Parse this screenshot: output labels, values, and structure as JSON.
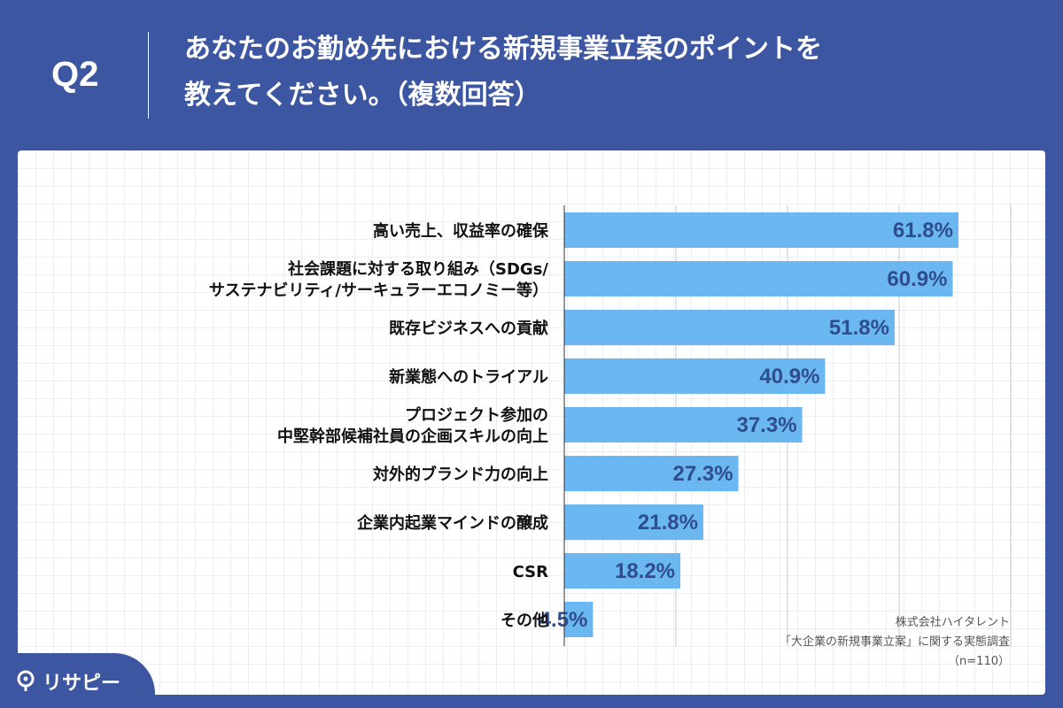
{
  "header": {
    "question_label": "Q2",
    "title_line1": "あなたのお勤め先における新規事業立案のポイントを",
    "title_line2": "教えてください。（複数回答）"
  },
  "source": {
    "line1": "株式会社ハイタレント",
    "line2": "「大企業の新規事業立案」に関する実態調査",
    "line3": "（n=110）"
  },
  "logo": {
    "text": "リサピー",
    "icon": "magnifier-pin-icon"
  },
  "colors": {
    "background": "#3d56a2",
    "bar": "#6ab7f2",
    "value_text": "#2f4d8c",
    "grid": "#c9cbd0"
  },
  "chart_data": {
    "type": "bar",
    "orientation": "horizontal",
    "categories": [
      [
        "高い売上、収益率の確保"
      ],
      [
        "社会課題に対する取り組み（SDGs/",
        "サステナビリティ/サーキュラーエコノミー等）"
      ],
      [
        "既存ビジネスへの貢献"
      ],
      [
        "新業態へのトライアル"
      ],
      [
        "プロジェクト参加の",
        "中堅幹部候補社員の企画スキルの向上"
      ],
      [
        "対外的ブランド力の向上"
      ],
      [
        "企業内起業マインドの醸成"
      ],
      [
        "CSR"
      ],
      [
        "その他"
      ]
    ],
    "values": [
      61.8,
      60.9,
      51.8,
      40.9,
      37.3,
      27.3,
      21.8,
      18.2,
      4.5
    ],
    "value_labels": [
      "61.8%",
      "60.9%",
      "51.8%",
      "40.9%",
      "37.3%",
      "27.3%",
      "21.8%",
      "18.2%",
      "4.5%"
    ],
    "xlim": [
      0,
      70
    ],
    "grid_step": 17.5,
    "grid": true
  }
}
